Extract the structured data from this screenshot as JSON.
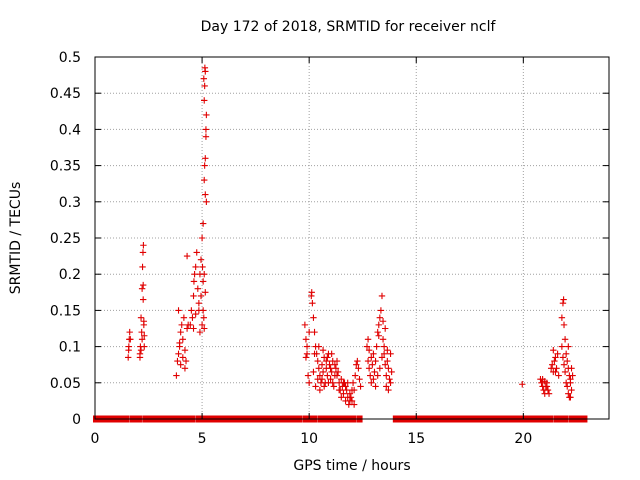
{
  "chart_data": {
    "type": "scatter",
    "title": "Day 172 of 2018, SRMTID for receiver nclf",
    "xlabel": "GPS time / hours",
    "ylabel": "SRMTID / TECUs",
    "xlim": [
      0,
      24
    ],
    "ylim": [
      0,
      0.5
    ],
    "xticks": [
      0,
      5,
      10,
      15,
      20
    ],
    "xtick_labels": [
      "0",
      "5",
      "10",
      "15",
      "20"
    ],
    "yticks": [
      0,
      0.05,
      0.1,
      0.15,
      0.2,
      0.25,
      0.3,
      0.35,
      0.4,
      0.45,
      0.5
    ],
    "ytick_labels": [
      "0",
      "0.05",
      "0.1",
      "0.15",
      "0.2",
      "0.25",
      "0.3",
      "0.35",
      "0.4",
      "0.45",
      "0.5"
    ],
    "grid": true,
    "marker": "+",
    "color": "#e00000",
    "zero_segments": [
      [
        0.0,
        1.5
      ],
      [
        1.7,
        2.1
      ],
      [
        2.3,
        3.6
      ],
      [
        3.7,
        4.6
      ],
      [
        4.8,
        9.6
      ],
      [
        9.8,
        10.3
      ],
      [
        10.5,
        12.1
      ],
      [
        12.3,
        12.4
      ],
      [
        14.0,
        20.7
      ],
      [
        20.8,
        21.3
      ],
      [
        21.5,
        22.0
      ],
      [
        22.2,
        22.4
      ],
      [
        22.5,
        22.9
      ]
    ],
    "zero_marker": "filled-square",
    "series": [
      {
        "name": "SRMTID",
        "points": [
          [
            1.55,
            0.085
          ],
          [
            1.57,
            0.095
          ],
          [
            1.6,
            0.11
          ],
          [
            1.62,
            0.12
          ],
          [
            1.58,
            0.1
          ],
          [
            1.65,
            0.11
          ],
          [
            2.1,
            0.09
          ],
          [
            2.12,
            0.1
          ],
          [
            2.15,
            0.14
          ],
          [
            2.18,
            0.12
          ],
          [
            2.2,
            0.18
          ],
          [
            2.22,
            0.21
          ],
          [
            2.24,
            0.23
          ],
          [
            2.26,
            0.24
          ],
          [
            2.15,
            0.095
          ],
          [
            2.2,
            0.11
          ],
          [
            2.25,
            0.165
          ],
          [
            2.28,
            0.13
          ],
          [
            2.1,
            0.085
          ],
          [
            2.3,
            0.1
          ],
          [
            2.3,
            0.115
          ],
          [
            2.25,
            0.185
          ],
          [
            2.28,
            0.135
          ],
          [
            3.8,
            0.06
          ],
          [
            3.85,
            0.08
          ],
          [
            3.9,
            0.09
          ],
          [
            3.95,
            0.1
          ],
          [
            4.0,
            0.12
          ],
          [
            4.05,
            0.13
          ],
          [
            4.1,
            0.11
          ],
          [
            4.15,
            0.14
          ],
          [
            4.2,
            0.07
          ],
          [
            4.25,
            0.08
          ],
          [
            4.3,
            0.125
          ],
          [
            4.35,
            0.13
          ],
          [
            4.0,
            0.075
          ],
          [
            3.9,
            0.15
          ],
          [
            4.3,
            0.225
          ],
          [
            3.95,
            0.105
          ],
          [
            4.1,
            0.085
          ],
          [
            4.2,
            0.095
          ],
          [
            4.45,
            0.13
          ],
          [
            4.5,
            0.15
          ],
          [
            4.55,
            0.14
          ],
          [
            4.6,
            0.17
          ],
          [
            4.62,
            0.19
          ],
          [
            4.65,
            0.2
          ],
          [
            4.7,
            0.21
          ],
          [
            4.75,
            0.23
          ],
          [
            4.8,
            0.18
          ],
          [
            4.85,
            0.16
          ],
          [
            4.9,
            0.2
          ],
          [
            4.95,
            0.22
          ],
          [
            5.0,
            0.25
          ],
          [
            5.05,
            0.27
          ],
          [
            5.1,
            0.33
          ],
          [
            5.12,
            0.35
          ],
          [
            5.15,
            0.36
          ],
          [
            5.18,
            0.4
          ],
          [
            5.2,
            0.42
          ],
          [
            5.1,
            0.44
          ],
          [
            5.12,
            0.46
          ],
          [
            5.15,
            0.48
          ],
          [
            5.08,
            0.47
          ],
          [
            5.13,
            0.485
          ],
          [
            5.18,
            0.39
          ],
          [
            5.15,
            0.31
          ],
          [
            5.1,
            0.2
          ],
          [
            5.05,
            0.15
          ],
          [
            5.0,
            0.13
          ],
          [
            4.9,
            0.12
          ],
          [
            4.95,
            0.17
          ],
          [
            5.02,
            0.21
          ],
          [
            5.08,
            0.14
          ],
          [
            5.2,
            0.3
          ],
          [
            5.05,
            0.19
          ],
          [
            4.85,
            0.15
          ],
          [
            4.7,
            0.145
          ],
          [
            4.6,
            0.125
          ],
          [
            5.15,
            0.175
          ],
          [
            5.1,
            0.125
          ],
          [
            9.8,
            0.13
          ],
          [
            9.85,
            0.11
          ],
          [
            9.9,
            0.09
          ],
          [
            9.95,
            0.06
          ],
          [
            10.0,
            0.12
          ],
          [
            9.9,
            0.1
          ],
          [
            9.85,
            0.085
          ],
          [
            10.0,
            0.05
          ],
          [
            10.1,
            0.17
          ],
          [
            10.12,
            0.175
          ],
          [
            10.15,
            0.16
          ],
          [
            10.2,
            0.14
          ],
          [
            10.25,
            0.12
          ],
          [
            10.3,
            0.1
          ],
          [
            10.35,
            0.09
          ],
          [
            10.4,
            0.08
          ],
          [
            10.45,
            0.07
          ],
          [
            10.5,
            0.06
          ],
          [
            10.55,
            0.05
          ],
          [
            10.6,
            0.075
          ],
          [
            10.65,
            0.065
          ],
          [
            10.7,
            0.085
          ],
          [
            10.75,
            0.05
          ],
          [
            10.8,
            0.07
          ],
          [
            10.85,
            0.06
          ],
          [
            10.9,
            0.09
          ],
          [
            10.95,
            0.075
          ],
          [
            11.0,
            0.055
          ],
          [
            11.05,
            0.065
          ],
          [
            11.1,
            0.05
          ],
          [
            11.15,
            0.045
          ],
          [
            11.2,
            0.06
          ],
          [
            11.25,
            0.07
          ],
          [
            11.3,
            0.08
          ],
          [
            11.35,
            0.065
          ],
          [
            11.4,
            0.05
          ],
          [
            11.45,
            0.04
          ],
          [
            11.5,
            0.03
          ],
          [
            11.55,
            0.045
          ],
          [
            11.6,
            0.035
          ],
          [
            11.65,
            0.05
          ],
          [
            11.7,
            0.025
          ],
          [
            11.75,
            0.04
          ],
          [
            11.8,
            0.03
          ],
          [
            11.85,
            0.02
          ],
          [
            11.9,
            0.035
          ],
          [
            11.95,
            0.03
          ],
          [
            12.0,
            0.025
          ],
          [
            12.05,
            0.05
          ],
          [
            12.1,
            0.04
          ],
          [
            12.15,
            0.06
          ],
          [
            12.2,
            0.075
          ],
          [
            12.25,
            0.08
          ],
          [
            12.3,
            0.07
          ],
          [
            12.35,
            0.055
          ],
          [
            12.4,
            0.045
          ],
          [
            10.2,
            0.065
          ],
          [
            10.3,
            0.045
          ],
          [
            10.4,
            0.055
          ],
          [
            10.5,
            0.04
          ],
          [
            10.6,
            0.055
          ],
          [
            10.7,
            0.045
          ],
          [
            10.8,
            0.08
          ],
          [
            10.9,
            0.05
          ],
          [
            11.0,
            0.07
          ],
          [
            11.1,
            0.08
          ],
          [
            11.2,
            0.075
          ],
          [
            11.3,
            0.06
          ],
          [
            11.4,
            0.04
          ],
          [
            11.5,
            0.055
          ],
          [
            11.6,
            0.05
          ],
          [
            11.7,
            0.045
          ],
          [
            11.8,
            0.05
          ],
          [
            11.9,
            0.025
          ],
          [
            12.0,
            0.04
          ],
          [
            12.1,
            0.02
          ],
          [
            10.25,
            0.09
          ],
          [
            10.45,
            0.1
          ],
          [
            10.65,
            0.095
          ],
          [
            10.85,
            0.085
          ],
          [
            11.05,
            0.09
          ],
          [
            12.7,
            0.1
          ],
          [
            12.75,
            0.08
          ],
          [
            12.8,
            0.07
          ],
          [
            12.85,
            0.06
          ],
          [
            12.9,
            0.05
          ],
          [
            12.95,
            0.075
          ],
          [
            13.0,
            0.09
          ],
          [
            13.05,
            0.065
          ],
          [
            13.1,
            0.08
          ],
          [
            13.15,
            0.1
          ],
          [
            13.2,
            0.12
          ],
          [
            13.25,
            0.13
          ],
          [
            13.3,
            0.14
          ],
          [
            13.35,
            0.15
          ],
          [
            13.4,
            0.17
          ],
          [
            13.45,
            0.11
          ],
          [
            13.5,
            0.09
          ],
          [
            13.55,
            0.075
          ],
          [
            13.6,
            0.06
          ],
          [
            13.65,
            0.08
          ],
          [
            13.7,
            0.07
          ],
          [
            13.75,
            0.055
          ],
          [
            13.8,
            0.09
          ],
          [
            13.85,
            0.065
          ],
          [
            12.8,
            0.095
          ],
          [
            12.9,
            0.085
          ],
          [
            13.0,
            0.055
          ],
          [
            13.1,
            0.045
          ],
          [
            13.2,
            0.06
          ],
          [
            13.3,
            0.07
          ],
          [
            13.4,
            0.085
          ],
          [
            13.5,
            0.1
          ],
          [
            13.6,
            0.045
          ],
          [
            13.7,
            0.04
          ],
          [
            13.8,
            0.05
          ],
          [
            12.75,
            0.11
          ],
          [
            13.25,
            0.115
          ],
          [
            13.45,
            0.135
          ],
          [
            13.55,
            0.125
          ],
          [
            13.65,
            0.095
          ],
          [
            19.95,
            0.048
          ],
          [
            20.8,
            0.055
          ],
          [
            20.85,
            0.05
          ],
          [
            20.9,
            0.045
          ],
          [
            20.95,
            0.04
          ],
          [
            21.0,
            0.035
          ],
          [
            21.05,
            0.045
          ],
          [
            21.1,
            0.05
          ],
          [
            21.15,
            0.04
          ],
          [
            21.2,
            0.035
          ],
          [
            20.9,
            0.055
          ],
          [
            21.0,
            0.052
          ],
          [
            21.1,
            0.045
          ],
          [
            21.3,
            0.07
          ],
          [
            21.35,
            0.075
          ],
          [
            21.4,
            0.095
          ],
          [
            21.45,
            0.08
          ],
          [
            21.5,
            0.065
          ],
          [
            21.55,
            0.07
          ],
          [
            21.6,
            0.09
          ],
          [
            21.65,
            0.06
          ],
          [
            21.4,
            0.065
          ],
          [
            21.5,
            0.085
          ],
          [
            21.8,
            0.14
          ],
          [
            21.85,
            0.16
          ],
          [
            21.88,
            0.165
          ],
          [
            21.9,
            0.13
          ],
          [
            21.95,
            0.11
          ],
          [
            22.0,
            0.09
          ],
          [
            22.05,
            0.08
          ],
          [
            22.1,
            0.07
          ],
          [
            22.15,
            0.06
          ],
          [
            22.2,
            0.05
          ],
          [
            22.25,
            0.04
          ],
          [
            22.3,
            0.06
          ],
          [
            21.9,
            0.075
          ],
          [
            21.95,
            0.065
          ],
          [
            22.0,
            0.05
          ],
          [
            22.05,
            0.045
          ],
          [
            22.1,
            0.035
          ],
          [
            22.15,
            0.03
          ],
          [
            22.2,
            0.055
          ],
          [
            22.25,
            0.07
          ],
          [
            21.85,
            0.085
          ],
          [
            21.8,
            0.1
          ],
          [
            22.1,
            0.1
          ],
          [
            22.2,
            0.03
          ]
        ]
      }
    ]
  }
}
